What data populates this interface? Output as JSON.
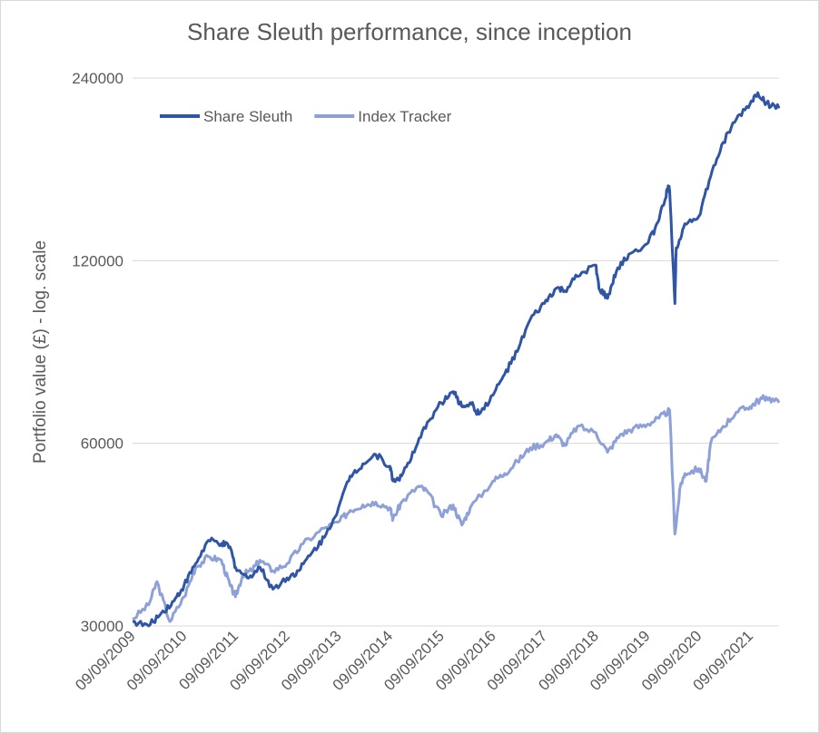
{
  "chart_data": {
    "type": "line",
    "title": "Share Sleuth performance, since inception",
    "xlabel": "",
    "ylabel": "Portfolio value (£) - log. scale",
    "y_scale": "log",
    "ylim": [
      30000,
      240000
    ],
    "y_ticks": [
      30000,
      60000,
      120000,
      240000
    ],
    "y_tick_labels": [
      "30000",
      "60000",
      "120000",
      "240000"
    ],
    "x_tick_labels": [
      "09/09/2009",
      "09/09/2010",
      "09/09/2011",
      "09/09/2012",
      "09/09/2013",
      "09/09/2014",
      "09/09/2015",
      "09/09/2016",
      "09/09/2017",
      "09/09/2018",
      "09/09/2019",
      "09/09/2020",
      "09/09/2021"
    ],
    "xlim": [
      "09/09/2009",
      "01/04/2022"
    ],
    "grid": "horizontal",
    "legend": "top-left",
    "series": [
      {
        "name": "Share Sleuth",
        "color": "#2f55a4",
        "points": [
          [
            "09/09/2009",
            30500
          ],
          [
            "01/01/2010",
            30000
          ],
          [
            "01/04/2010",
            31500
          ],
          [
            "01/07/2010",
            33000
          ],
          [
            "09/09/2010",
            35000
          ],
          [
            "01/12/2010",
            38000
          ],
          [
            "01/03/2011",
            41500
          ],
          [
            "01/06/2011",
            41000
          ],
          [
            "01/08/2011",
            40500
          ],
          [
            "09/09/2011",
            37500
          ],
          [
            "01/12/2011",
            36000
          ],
          [
            "01/03/2012",
            37500
          ],
          [
            "01/06/2012",
            34500
          ],
          [
            "09/09/2012",
            36000
          ],
          [
            "01/12/2012",
            37000
          ],
          [
            "01/03/2013",
            39500
          ],
          [
            "01/06/2013",
            42000
          ],
          [
            "09/09/2013",
            47000
          ],
          [
            "01/12/2013",
            53000
          ],
          [
            "01/03/2014",
            55500
          ],
          [
            "01/06/2014",
            57500
          ],
          [
            "09/09/2014",
            55000
          ],
          [
            "01/10/2014",
            52000
          ],
          [
            "01/12/2014",
            53000
          ],
          [
            "01/03/2015",
            58000
          ],
          [
            "01/06/2015",
            65000
          ],
          [
            "09/09/2015",
            70000
          ],
          [
            "01/12/2015",
            73000
          ],
          [
            "01/02/2016",
            69000
          ],
          [
            "01/04/2016",
            70000
          ],
          [
            "01/06/2016",
            67000
          ],
          [
            "09/09/2016",
            72000
          ],
          [
            "01/12/2016",
            78000
          ],
          [
            "01/03/2017",
            85000
          ],
          [
            "01/06/2017",
            96000
          ],
          [
            "09/09/2017",
            102000
          ],
          [
            "01/12/2017",
            108000
          ],
          [
            "01/02/2018",
            107000
          ],
          [
            "01/05/2018",
            113000
          ],
          [
            "09/09/2018",
            118000
          ],
          [
            "01/10/2018",
            108000
          ],
          [
            "01/12/2018",
            104000
          ],
          [
            "01/02/2019",
            115000
          ],
          [
            "01/05/2019",
            123000
          ],
          [
            "09/09/2019",
            128000
          ],
          [
            "01/11/2019",
            135000
          ],
          [
            "01/01/2020",
            148000
          ],
          [
            "01/02/2020",
            158000
          ],
          [
            "15/02/2020",
            157000
          ],
          [
            "23/03/2020",
            102000
          ],
          [
            "01/04/2020",
            126000
          ],
          [
            "01/06/2020",
            138000
          ],
          [
            "09/09/2020",
            142000
          ],
          [
            "01/12/2020",
            165000
          ],
          [
            "01/03/2021",
            188000
          ],
          [
            "01/06/2021",
            205000
          ],
          [
            "09/09/2021",
            218000
          ],
          [
            "01/11/2021",
            227000
          ],
          [
            "01/01/2022",
            218000
          ],
          [
            "01/04/2022",
            214000
          ]
        ]
      },
      {
        "name": "Index Tracker",
        "color": "#8da0d8",
        "points": [
          [
            "09/09/2009",
            30800
          ],
          [
            "01/01/2010",
            32500
          ],
          [
            "01/03/2010",
            35500
          ],
          [
            "01/06/2010",
            30500
          ],
          [
            "09/09/2010",
            33500
          ],
          [
            "01/12/2010",
            37500
          ],
          [
            "01/03/2011",
            39000
          ],
          [
            "01/06/2011",
            38500
          ],
          [
            "01/08/2011",
            35000
          ],
          [
            "09/09/2011",
            33500
          ],
          [
            "01/11/2011",
            36500
          ],
          [
            "01/01/2012",
            37000
          ],
          [
            "01/03/2012",
            38500
          ],
          [
            "01/06/2012",
            37000
          ],
          [
            "09/09/2012",
            38000
          ],
          [
            "01/01/2013",
            41000
          ],
          [
            "01/06/2013",
            43500
          ],
          [
            "09/09/2013",
            44500
          ],
          [
            "01/12/2013",
            46500
          ],
          [
            "01/03/2014",
            47500
          ],
          [
            "01/06/2014",
            48000
          ],
          [
            "09/09/2014",
            47000
          ],
          [
            "01/10/2014",
            45000
          ],
          [
            "01/12/2014",
            48000
          ],
          [
            "01/04/2015",
            51000
          ],
          [
            "01/06/2015",
            50000
          ],
          [
            "09/09/2015",
            45500
          ],
          [
            "01/12/2015",
            47500
          ],
          [
            "01/02/2016",
            44000
          ],
          [
            "01/04/2016",
            47000
          ],
          [
            "09/09/2016",
            52000
          ],
          [
            "01/12/2016",
            53500
          ],
          [
            "01/03/2017",
            56000
          ],
          [
            "01/06/2017",
            59000
          ],
          [
            "09/09/2017",
            60000
          ],
          [
            "01/12/2017",
            62000
          ],
          [
            "01/02/2018",
            59500
          ],
          [
            "01/05/2018",
            64000
          ],
          [
            "09/09/2018",
            62500
          ],
          [
            "01/12/2018",
            58000
          ],
          [
            "01/03/2019",
            62000
          ],
          [
            "01/06/2019",
            63500
          ],
          [
            "09/09/2019",
            64500
          ],
          [
            "01/12/2019",
            66000
          ],
          [
            "15/02/2020",
            68000
          ],
          [
            "23/03/2020",
            42500
          ],
          [
            "01/05/2020",
            51000
          ],
          [
            "01/06/2020",
            53500
          ],
          [
            "09/09/2020",
            54500
          ],
          [
            "01/11/2020",
            52000
          ],
          [
            "01/12/2020",
            60000
          ],
          [
            "01/03/2021",
            64000
          ],
          [
            "01/06/2021",
            67500
          ],
          [
            "09/09/2021",
            69000
          ],
          [
            "01/11/2021",
            70500
          ],
          [
            "01/01/2022",
            71500
          ],
          [
            "01/04/2022",
            70000
          ]
        ]
      }
    ]
  }
}
